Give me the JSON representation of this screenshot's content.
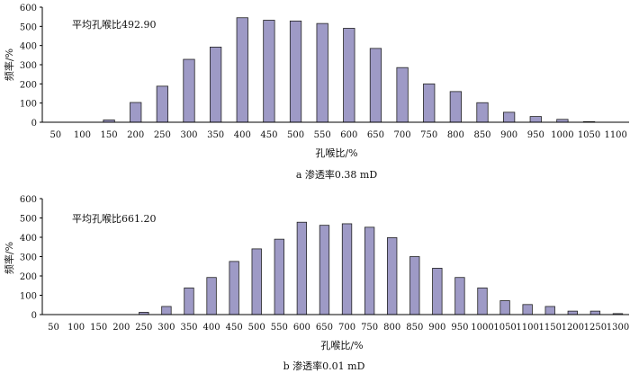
{
  "chart_data": [
    {
      "type": "bar",
      "annotation": "平均孔喉比492.90",
      "ylabel": "频率/%",
      "xlabel": "孔喉比/%",
      "caption": "a  渗透率0.38 mD",
      "ylim": [
        0,
        600
      ],
      "yticks": [
        "0",
        "100",
        "200",
        "300",
        "400",
        "500",
        "600"
      ],
      "categories": [
        "50",
        "100",
        "150",
        "200",
        "250",
        "300",
        "350",
        "400",
        "450",
        "500",
        "550",
        "600",
        "650",
        "700",
        "750",
        "800",
        "850",
        "900",
        "950",
        "1000",
        "1050",
        "1100"
      ],
      "values": [
        0,
        0,
        12,
        103,
        188,
        328,
        392,
        545,
        532,
        528,
        515,
        490,
        385,
        285,
        200,
        160,
        102,
        52,
        30,
        15,
        3,
        0
      ],
      "grid": false,
      "bar_color": "#9e9ac6"
    },
    {
      "type": "bar",
      "annotation": "平均孔喉比661.20",
      "ylabel": "频率/%",
      "xlabel": "孔喉比/%",
      "caption": "b  渗透率0.01 mD",
      "ylim": [
        0,
        600
      ],
      "yticks": [
        "0",
        "100",
        "200",
        "300",
        "400",
        "500",
        "600"
      ],
      "categories": [
        "50",
        "100",
        "150",
        "200",
        "250",
        "300",
        "350",
        "400",
        "450",
        "500",
        "550",
        "600",
        "650",
        "700",
        "750",
        "800",
        "850",
        "900",
        "950",
        "1000",
        "1050",
        "1100",
        "1150",
        "1200",
        "1250",
        "1300"
      ],
      "values": [
        0,
        0,
        0,
        0,
        12,
        42,
        138,
        192,
        275,
        340,
        390,
        478,
        462,
        470,
        452,
        398,
        300,
        240,
        192,
        138,
        72,
        52,
        42,
        18,
        18,
        5
      ],
      "grid": false,
      "bar_color": "#9e9ac6"
    }
  ]
}
